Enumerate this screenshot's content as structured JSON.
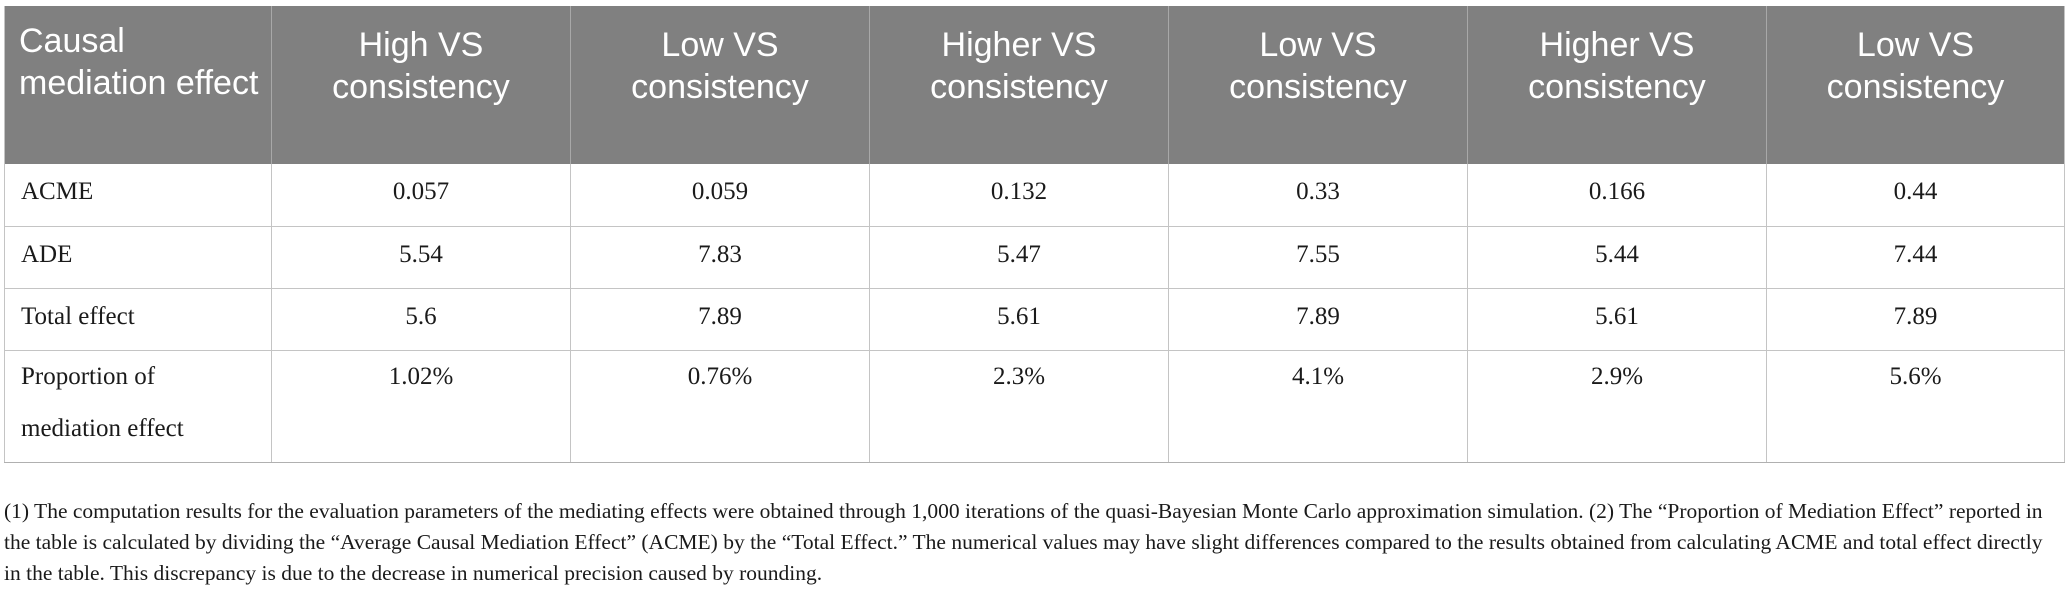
{
  "table": {
    "headers": [
      "Causal mediation effect",
      "High VS consistency",
      "Low VS consistency",
      "Higher VS consistency",
      "Low VS consistency",
      "Higher VS consistency",
      "Low VS consistency"
    ],
    "rows": [
      {
        "label": "ACME",
        "values": [
          "0.057",
          "0.059",
          "0.132",
          "0.33",
          "0.166",
          "0.44"
        ]
      },
      {
        "label": "ADE",
        "values": [
          "5.54",
          "7.83",
          "5.47",
          "7.55",
          "5.44",
          "7.44"
        ]
      },
      {
        "label": "Total effect",
        "values": [
          "5.6",
          "7.89",
          "5.61",
          "7.89",
          "5.61",
          "7.89"
        ]
      },
      {
        "label": "Proportion of mediation effect",
        "values": [
          "1.02%",
          "0.76%",
          "2.3%",
          "4.1%",
          "2.9%",
          "5.6%"
        ]
      }
    ]
  },
  "footnote": "(1) The computation results for the evaluation parameters of the mediating effects were obtained through 1,000 iterations of the quasi-Bayesian Monte Carlo approximation simulation. (2) The “Proportion of Mediation Effect” reported in the table is calculated by dividing the “Average Causal Mediation Effect” (ACME) by the “Total Effect.” The numerical values may have slight differences compared to the results obtained from calculating ACME and total effect directly in the table. This discrepancy is due to the decrease in numerical precision caused by rounding."
}
